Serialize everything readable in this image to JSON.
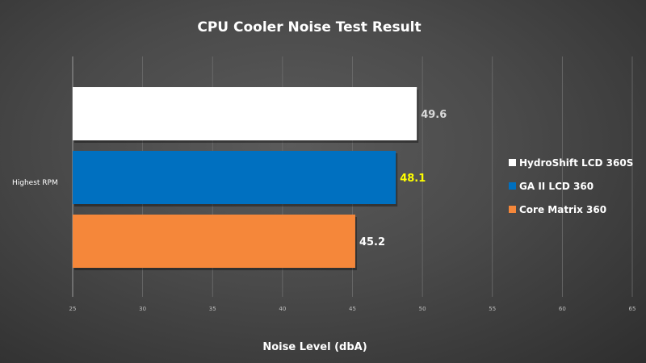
{
  "chart_data": {
    "type": "bar",
    "orientation": "horizontal",
    "title": "CPU Cooler Noise Test Result",
    "xlabel": "Noise Level (dbA)",
    "ylabel": "",
    "categories": [
      "Highest RPM"
    ],
    "xlim": [
      25,
      65
    ],
    "xticks": [
      25,
      30,
      35,
      40,
      45,
      50,
      55,
      60,
      65
    ],
    "grid": true,
    "legend_position": "right",
    "series": [
      {
        "name": "HydroShift LCD 360S",
        "values": [
          49.6
        ],
        "color": "#ffffff",
        "label_color": "#d9d9d9"
      },
      {
        "name": "GA II LCD 360",
        "values": [
          48.1
        ],
        "color": "#0070c0",
        "label_color": "#ffff00"
      },
      {
        "name": "Core Matrix 360",
        "values": [
          45.2
        ],
        "color": "#f5873a",
        "label_color": "#ffffff"
      }
    ]
  }
}
